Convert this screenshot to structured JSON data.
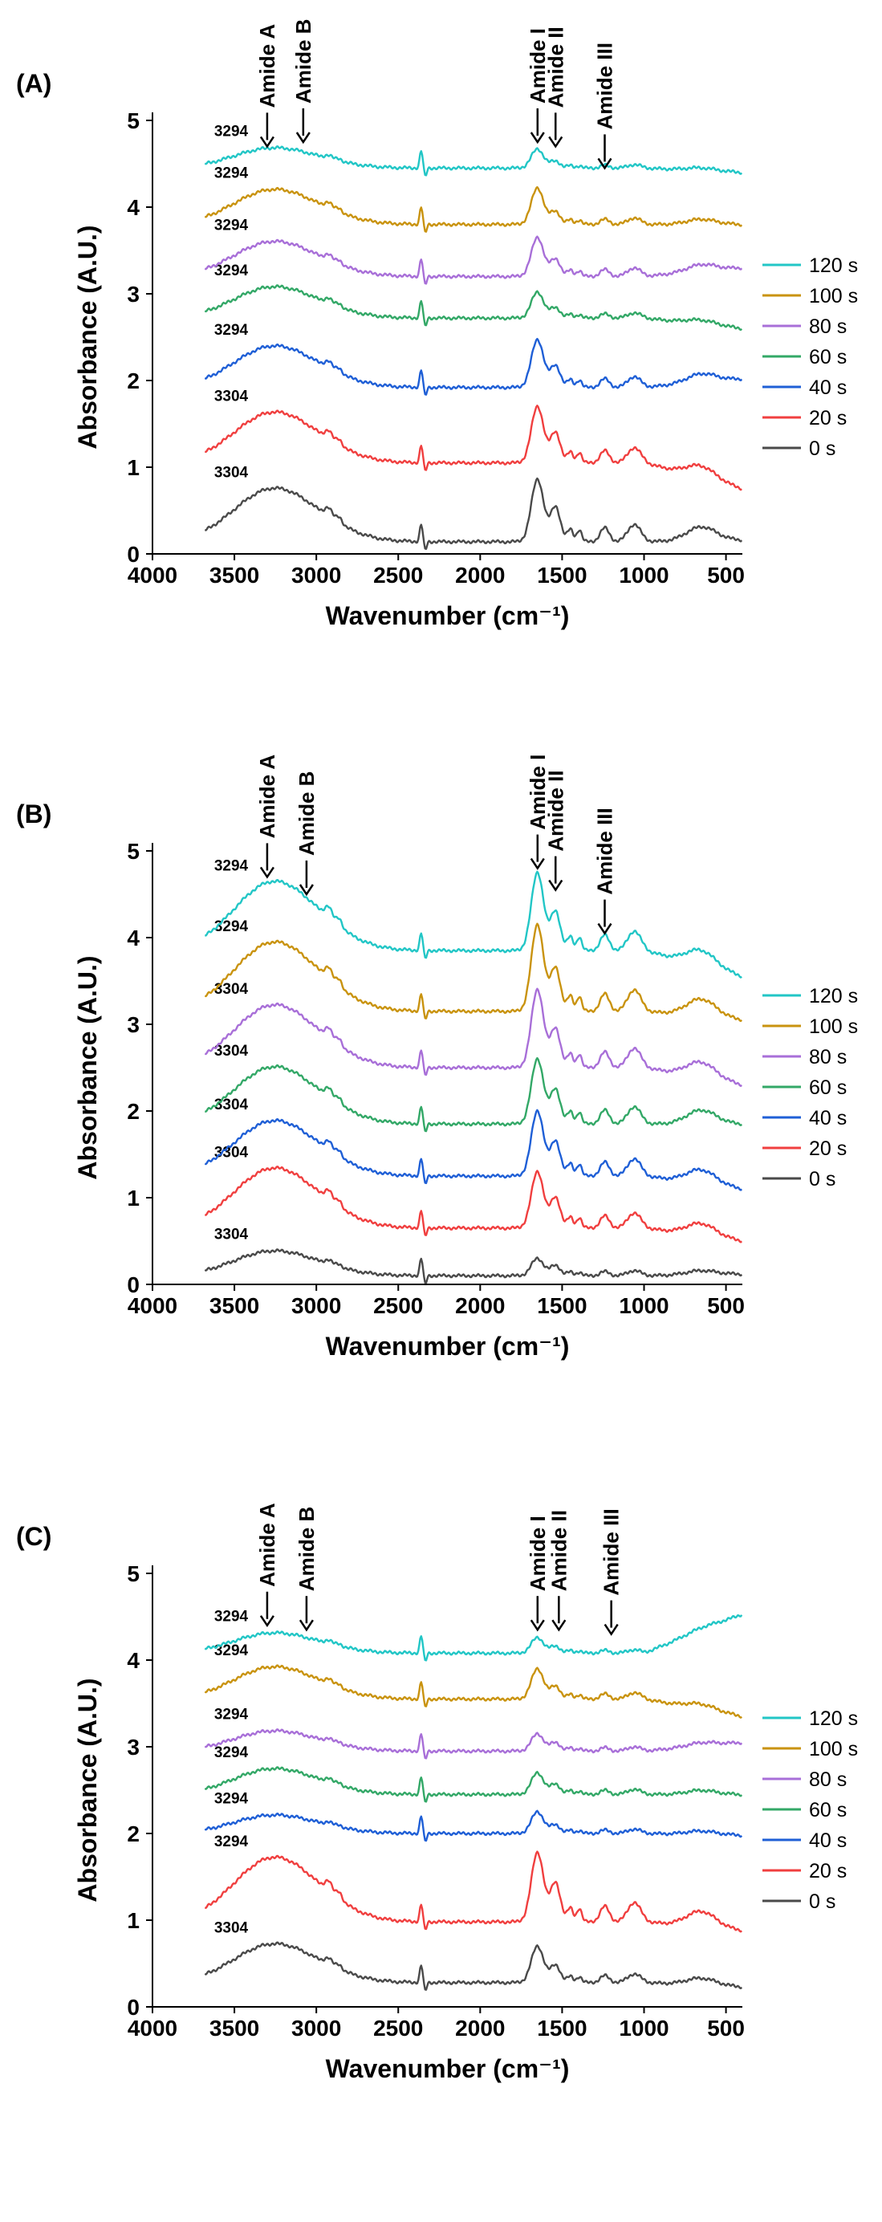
{
  "colors": {
    "120 s": "#22c6c6",
    "100 s": "#c9930f",
    "80 s": "#a86fd8",
    "60 s": "#33a867",
    "40 s": "#1f5fd6",
    "20 s": "#f03f3f",
    "0 s": "#4a4a4a"
  },
  "chart_data": [
    {
      "type": "line",
      "panel": "(A)",
      "xlabel": "Wavenumber (cm⁻¹)",
      "ylabel": "Absorbance (A.U.)",
      "xlim": [
        4000,
        400
      ],
      "ylim": [
        0,
        5
      ],
      "xticks": [
        "4000",
        "3500",
        "3000",
        "2500",
        "2000",
        "1500",
        "1000",
        "500"
      ],
      "yticks": [
        "0",
        "1",
        "2",
        "3",
        "4",
        "5"
      ],
      "legend": [
        "120 s",
        "100 s",
        "80 s",
        "60 s",
        "40 s",
        "20 s",
        "0 s"
      ],
      "amide_markers": [
        {
          "label": "Amide A",
          "x": 3300,
          "y_tip": 4.7
        },
        {
          "label": "Amide B",
          "x": 3080,
          "y_tip": 4.75
        },
        {
          "label": "Amide I",
          "x": 1650,
          "y_tip": 4.75
        },
        {
          "label": "Amide II",
          "x": 1540,
          "y_tip": 4.7
        },
        {
          "label": "Amide III",
          "x": 1240,
          "y_tip": 4.45
        }
      ],
      "series": [
        {
          "name": "0 s",
          "base": 0.14,
          "peakA": 0.58,
          "amideI": 0.72,
          "amideII": 0.4,
          "tail": 0.02,
          "label": "3304"
        },
        {
          "name": "20 s",
          "base": 1.05,
          "peakA": 0.55,
          "amideI": 0.65,
          "amideII": 0.35,
          "tail": -0.3,
          "label": "3304"
        },
        {
          "name": "40 s",
          "base": 1.92,
          "peakA": 0.45,
          "amideI": 0.55,
          "amideII": 0.25,
          "tail": 0.1,
          "label": "3294"
        },
        {
          "name": "60 s",
          "base": 2.72,
          "peakA": 0.34,
          "amideI": 0.3,
          "amideII": 0.12,
          "tail": -0.12,
          "label": "3294"
        },
        {
          "name": "80 s",
          "base": 3.2,
          "peakA": 0.38,
          "amideI": 0.45,
          "amideII": 0.2,
          "tail": 0.1,
          "label": "3294"
        },
        {
          "name": "100 s",
          "base": 3.8,
          "peakA": 0.38,
          "amideI": 0.42,
          "amideII": 0.15,
          "tail": 0.0,
          "label": "3294"
        },
        {
          "name": "120 s",
          "base": 4.45,
          "peakA": 0.22,
          "amideI": 0.22,
          "amideII": 0.08,
          "tail": -0.05,
          "label": "3294"
        }
      ]
    },
    {
      "type": "line",
      "panel": "(B)",
      "xlabel": "Wavenumber (cm⁻¹)",
      "ylabel": "Absorbance (A.U.)",
      "xlim": [
        4000,
        400
      ],
      "ylim": [
        0,
        5
      ],
      "xticks": [
        "4000",
        "3500",
        "3000",
        "2500",
        "2000",
        "1500",
        "1000",
        "500"
      ],
      "yticks": [
        "0",
        "1",
        "2",
        "3",
        "4",
        "5"
      ],
      "legend": [
        "120 s",
        "100 s",
        "80 s",
        "60 s",
        "40 s",
        "20 s",
        "0 s"
      ],
      "amide_markers": [
        {
          "label": "Amide A",
          "x": 3300,
          "y_tip": 4.7
        },
        {
          "label": "Amide B",
          "x": 3060,
          "y_tip": 4.5
        },
        {
          "label": "Amide I",
          "x": 1650,
          "y_tip": 4.8
        },
        {
          "label": "Amide II",
          "x": 1540,
          "y_tip": 4.55
        },
        {
          "label": "Amide III",
          "x": 1240,
          "y_tip": 4.05
        }
      ],
      "series": [
        {
          "name": "0 s",
          "base": 0.1,
          "peakA": 0.27,
          "amideI": 0.2,
          "amideII": 0.12,
          "tail": 0.02,
          "label": "3304"
        },
        {
          "name": "20 s",
          "base": 0.65,
          "peakA": 0.65,
          "amideI": 0.65,
          "amideII": 0.35,
          "tail": -0.15,
          "label": "3304"
        },
        {
          "name": "40 s",
          "base": 1.25,
          "peakA": 0.6,
          "amideI": 0.75,
          "amideII": 0.4,
          "tail": -0.15,
          "label": "3304"
        },
        {
          "name": "60 s",
          "base": 1.85,
          "peakA": 0.62,
          "amideI": 0.75,
          "amideII": 0.4,
          "tail": 0.0,
          "label": "3304"
        },
        {
          "name": "80 s",
          "base": 2.5,
          "peakA": 0.68,
          "amideI": 0.9,
          "amideII": 0.45,
          "tail": -0.2,
          "label": "3304"
        },
        {
          "name": "100 s",
          "base": 3.15,
          "peakA": 0.75,
          "amideI": 1.0,
          "amideII": 0.5,
          "tail": -0.1,
          "label": "3294"
        },
        {
          "name": "120 s",
          "base": 3.85,
          "peakA": 0.75,
          "amideI": 0.9,
          "amideII": 0.45,
          "tail": -0.3,
          "label": "3294"
        }
      ]
    },
    {
      "type": "line",
      "panel": "(C)",
      "xlabel": "Wavenumber (cm⁻¹)",
      "ylabel": "Absorbance (A.U.)",
      "xlim": [
        4000,
        400
      ],
      "ylim": [
        0,
        5
      ],
      "xticks": [
        "4000",
        "3500",
        "3000",
        "2500",
        "2000",
        "1500",
        "1000",
        "500"
      ],
      "yticks": [
        "0",
        "1",
        "2",
        "3",
        "4",
        "5"
      ],
      "legend": [
        "120 s",
        "100 s",
        "80 s",
        "60 s",
        "40 s",
        "20 s",
        "0 s"
      ],
      "amide_markers": [
        {
          "label": "Amide A",
          "x": 3300,
          "y_tip": 4.4
        },
        {
          "label": "Amide B",
          "x": 3060,
          "y_tip": 4.35
        },
        {
          "label": "Amide I",
          "x": 1650,
          "y_tip": 4.35
        },
        {
          "label": "Amide II",
          "x": 1520,
          "y_tip": 4.35
        },
        {
          "label": "Amide III",
          "x": 1200,
          "y_tip": 4.3
        }
      ],
      "series": [
        {
          "name": "0 s",
          "base": 0.28,
          "peakA": 0.42,
          "amideI": 0.42,
          "amideII": 0.2,
          "tail": -0.05,
          "label": "3304"
        },
        {
          "name": "20 s",
          "base": 0.98,
          "peakA": 0.7,
          "amideI": 0.8,
          "amideII": 0.45,
          "tail": -0.1,
          "label": "3294"
        },
        {
          "name": "40 s",
          "base": 2.0,
          "peakA": 0.2,
          "amideI": 0.25,
          "amideII": 0.1,
          "tail": -0.02,
          "label": "3294"
        },
        {
          "name": "60 s",
          "base": 2.45,
          "peakA": 0.28,
          "amideI": 0.25,
          "amideII": 0.12,
          "tail": 0.0,
          "label": "3294"
        },
        {
          "name": "80 s",
          "base": 2.95,
          "peakA": 0.22,
          "amideI": 0.2,
          "amideII": 0.1,
          "tail": 0.1,
          "label": "3294"
        },
        {
          "name": "100 s",
          "base": 3.55,
          "peakA": 0.35,
          "amideI": 0.35,
          "amideII": 0.15,
          "tail": -0.2,
          "label": "3294"
        },
        {
          "name": "120 s",
          "base": 4.08,
          "peakA": 0.22,
          "amideI": 0.18,
          "amideII": 0.08,
          "tail": 0.45,
          "label": "3294"
        }
      ]
    }
  ]
}
